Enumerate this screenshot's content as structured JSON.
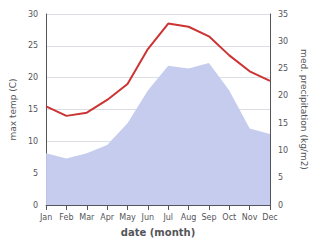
{
  "chart_data": {
    "type": "line",
    "xlabel": "date (month)",
    "ylabel": "max temp (C)",
    "y2label": "med. precipitation (kg/m2)",
    "categories": [
      "Jan",
      "Feb",
      "Mar",
      "Apr",
      "May",
      "Jun",
      "Jul",
      "Aug",
      "Sep",
      "Oct",
      "Nov",
      "Dec"
    ],
    "series": [
      {
        "type": "area",
        "axis": "y2",
        "color": "#c5ccee",
        "values": [
          9.5,
          8.5,
          9.5,
          11.0,
          15.0,
          21.0,
          25.5,
          25.0,
          26.0,
          21.0,
          14.0,
          13.0
        ]
      },
      {
        "type": "line",
        "color": "#cc3333",
        "values": [
          15.5,
          14.0,
          14.5,
          16.5,
          19.0,
          24.5,
          28.5,
          28.0,
          26.5,
          23.5,
          21.0,
          19.5
        ]
      }
    ],
    "ylim": [
      0,
      30
    ],
    "yticks": [
      0,
      5,
      10,
      15,
      20,
      25,
      30
    ],
    "y2lim": [
      0,
      35
    ],
    "y2ticks": [
      0,
      5,
      10,
      15,
      20,
      25,
      30,
      35
    ],
    "grid": true
  }
}
